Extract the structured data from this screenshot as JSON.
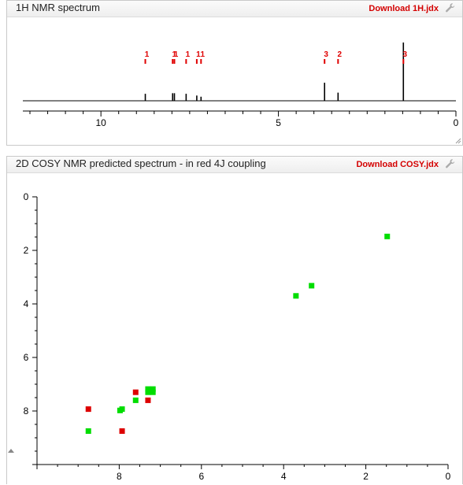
{
  "panel1": {
    "title": "1H NMR spectrum",
    "link": "Download 1H.jdx",
    "icon": "wrench-icon"
  },
  "panel2": {
    "title": "2D COSY NMR predicted spectrum - in red 4J coupling",
    "link": "Download COSY.jdx",
    "icon": "wrench-icon"
  },
  "chart_data": [
    {
      "type": "line",
      "title": "",
      "xlabel": "",
      "ylabel": "",
      "xlim": [
        12.2,
        0
      ],
      "x_ticks": [
        10,
        5,
        0
      ],
      "peaks": [
        {
          "x": 8.75,
          "height": 0.12,
          "label": "1"
        },
        {
          "x": 7.98,
          "height": 0.13,
          "label": "1"
        },
        {
          "x": 7.93,
          "height": 0.13,
          "label": "1"
        },
        {
          "x": 7.6,
          "height": 0.12,
          "label": "1"
        },
        {
          "x": 7.3,
          "height": 0.09,
          "label": "1"
        },
        {
          "x": 7.18,
          "height": 0.07,
          "label": "1"
        },
        {
          "x": 3.7,
          "height": 0.31,
          "label": "3"
        },
        {
          "x": 3.32,
          "height": 0.14,
          "label": "2"
        },
        {
          "x": 1.48,
          "height": 1.0,
          "label": "3"
        }
      ],
      "colors": {
        "spectrum": "#000000",
        "labels": "#e00000"
      }
    },
    {
      "type": "scatter",
      "title": "",
      "xlabel": "",
      "ylabel": "",
      "xlim": [
        10,
        0
      ],
      "ylim": [
        0,
        10
      ],
      "x_ticks": [
        8,
        6,
        4,
        2,
        0
      ],
      "y_ticks": [
        0,
        2,
        4,
        6,
        8
      ],
      "series": [
        {
          "color": "#00dd00",
          "points": [
            [
              1.48,
              1.48
            ],
            [
              3.32,
              3.32
            ],
            [
              3.7,
              3.7
            ],
            [
              7.18,
              7.18
            ],
            [
              7.3,
              7.18
            ],
            [
              7.18,
              7.3
            ],
            [
              7.3,
              7.3
            ],
            [
              7.6,
              7.6
            ],
            [
              7.93,
              7.93
            ],
            [
              7.98,
              7.98
            ],
            [
              8.75,
              8.75
            ]
          ]
        },
        {
          "color": "#dd0000",
          "points": [
            [
              7.6,
              7.3
            ],
            [
              7.3,
              7.6
            ],
            [
              8.75,
              7.93
            ],
            [
              7.93,
              8.75
            ]
          ]
        }
      ]
    }
  ]
}
